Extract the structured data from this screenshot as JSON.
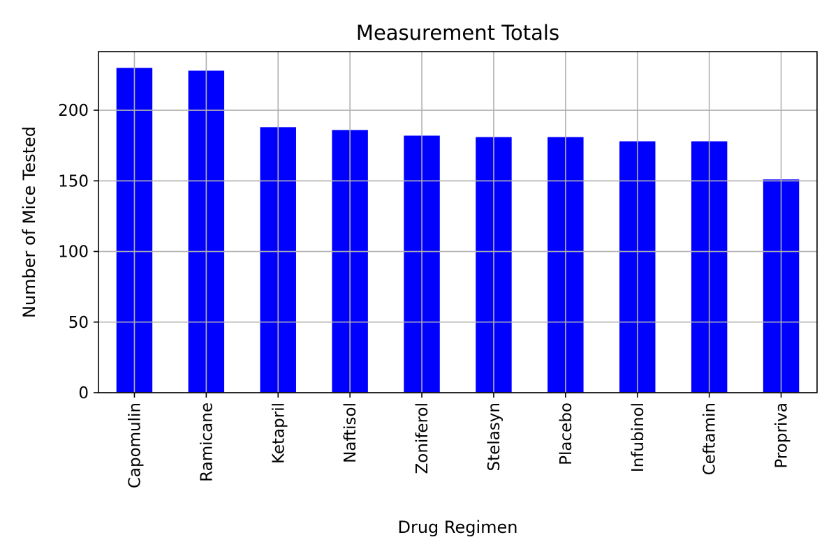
{
  "chart_data": {
    "type": "bar",
    "title": "Measurement Totals",
    "xlabel": "Drug Regimen",
    "ylabel": "Number of Mice Tested",
    "categories": [
      "Capomulin",
      "Ramicane",
      "Ketapril",
      "Naftisol",
      "Zoniferol",
      "Stelasyn",
      "Placebo",
      "Infubinol",
      "Ceftamin",
      "Propriva"
    ],
    "values": [
      230,
      228,
      188,
      186,
      182,
      181,
      181,
      178,
      178,
      151
    ],
    "ylim": [
      0,
      241.5
    ],
    "yticks": [
      0,
      50,
      100,
      150,
      200
    ],
    "grid": true,
    "bar_color": "#0000ff",
    "grid_color": "#b0b0b0"
  }
}
